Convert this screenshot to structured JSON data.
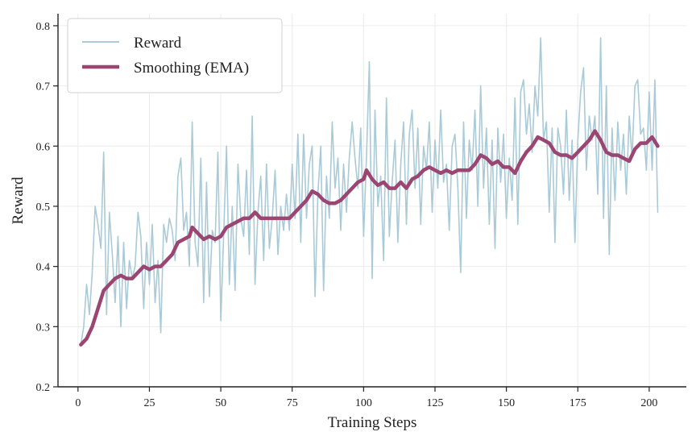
{
  "chart_data": {
    "type": "line",
    "title": "",
    "xlabel": "Training Steps",
    "ylabel": "Reward",
    "xlim": [
      -7,
      213
    ],
    "ylim": [
      0.2,
      0.82
    ],
    "xticks": [
      0,
      25,
      50,
      75,
      100,
      125,
      150,
      175,
      200
    ],
    "yticks": [
      0.2,
      0.3,
      0.4,
      0.5,
      0.6,
      0.7,
      0.8
    ],
    "grid": true,
    "legend_position": "top-left",
    "series": [
      {
        "name": "Reward",
        "color": "#a9cad6",
        "style": "thin",
        "points": [
          [
            1,
            0.27
          ],
          [
            2,
            0.3
          ],
          [
            3,
            0.37
          ],
          [
            4,
            0.32
          ],
          [
            5,
            0.39
          ],
          [
            6,
            0.5
          ],
          [
            7,
            0.47
          ],
          [
            8,
            0.43
          ],
          [
            9,
            0.59
          ],
          [
            10,
            0.32
          ],
          [
            11,
            0.49
          ],
          [
            12,
            0.42
          ],
          [
            13,
            0.34
          ],
          [
            14,
            0.45
          ],
          [
            15,
            0.3
          ],
          [
            16,
            0.44
          ],
          [
            17,
            0.33
          ],
          [
            18,
            0.41
          ],
          [
            19,
            0.38
          ],
          [
            20,
            0.4
          ],
          [
            21,
            0.49
          ],
          [
            22,
            0.45
          ],
          [
            23,
            0.33
          ],
          [
            24,
            0.44
          ],
          [
            25,
            0.37
          ],
          [
            26,
            0.47
          ],
          [
            27,
            0.34
          ],
          [
            28,
            0.41
          ],
          [
            29,
            0.29
          ],
          [
            30,
            0.47
          ],
          [
            31,
            0.44
          ],
          [
            32,
            0.48
          ],
          [
            33,
            0.46
          ],
          [
            34,
            0.41
          ],
          [
            35,
            0.55
          ],
          [
            36,
            0.58
          ],
          [
            37,
            0.46
          ],
          [
            38,
            0.49
          ],
          [
            39,
            0.4
          ],
          [
            40,
            0.64
          ],
          [
            41,
            0.44
          ],
          [
            42,
            0.4
          ],
          [
            43,
            0.58
          ],
          [
            44,
            0.34
          ],
          [
            45,
            0.54
          ],
          [
            46,
            0.35
          ],
          [
            47,
            0.46
          ],
          [
            48,
            0.44
          ],
          [
            49,
            0.59
          ],
          [
            50,
            0.31
          ],
          [
            51,
            0.45
          ],
          [
            52,
            0.6
          ],
          [
            53,
            0.37
          ],
          [
            54,
            0.5
          ],
          [
            55,
            0.36
          ],
          [
            56,
            0.57
          ],
          [
            57,
            0.48
          ],
          [
            58,
            0.45
          ],
          [
            59,
            0.56
          ],
          [
            60,
            0.42
          ],
          [
            61,
            0.65
          ],
          [
            62,
            0.37
          ],
          [
            63,
            0.49
          ],
          [
            64,
            0.55
          ],
          [
            65,
            0.41
          ],
          [
            66,
            0.57
          ],
          [
            67,
            0.43
          ],
          [
            68,
            0.48
          ],
          [
            69,
            0.56
          ],
          [
            70,
            0.42
          ],
          [
            71,
            0.5
          ],
          [
            72,
            0.46
          ],
          [
            73,
            0.52
          ],
          [
            74,
            0.46
          ],
          [
            75,
            0.57
          ],
          [
            76,
            0.48
          ],
          [
            77,
            0.62
          ],
          [
            78,
            0.44
          ],
          [
            79,
            0.62
          ],
          [
            80,
            0.48
          ],
          [
            81,
            0.57
          ],
          [
            82,
            0.6
          ],
          [
            83,
            0.35
          ],
          [
            84,
            0.52
          ],
          [
            85,
            0.6
          ],
          [
            86,
            0.36
          ],
          [
            87,
            0.55
          ],
          [
            88,
            0.48
          ],
          [
            89,
            0.64
          ],
          [
            90,
            0.53
          ],
          [
            91,
            0.58
          ],
          [
            92,
            0.46
          ],
          [
            93,
            0.57
          ],
          [
            94,
            0.49
          ],
          [
            95,
            0.58
          ],
          [
            96,
            0.64
          ],
          [
            97,
            0.58
          ],
          [
            98,
            0.53
          ],
          [
            99,
            0.63
          ],
          [
            100,
            0.45
          ],
          [
            101,
            0.58
          ],
          [
            102,
            0.74
          ],
          [
            103,
            0.38
          ],
          [
            104,
            0.66
          ],
          [
            105,
            0.5
          ],
          [
            106,
            0.55
          ],
          [
            107,
            0.41
          ],
          [
            108,
            0.68
          ],
          [
            109,
            0.45
          ],
          [
            110,
            0.54
          ],
          [
            111,
            0.61
          ],
          [
            112,
            0.44
          ],
          [
            113,
            0.57
          ],
          [
            114,
            0.64
          ],
          [
            115,
            0.47
          ],
          [
            116,
            0.62
          ],
          [
            117,
            0.66
          ],
          [
            118,
            0.53
          ],
          [
            119,
            0.63
          ],
          [
            120,
            0.47
          ],
          [
            121,
            0.6
          ],
          [
            122,
            0.56
          ],
          [
            123,
            0.64
          ],
          [
            124,
            0.49
          ],
          [
            125,
            0.61
          ],
          [
            126,
            0.53
          ],
          [
            127,
            0.66
          ],
          [
            128,
            0.54
          ],
          [
            129,
            0.57
          ],
          [
            130,
            0.46
          ],
          [
            131,
            0.6
          ],
          [
            132,
            0.62
          ],
          [
            133,
            0.53
          ],
          [
            134,
            0.39
          ],
          [
            135,
            0.64
          ],
          [
            136,
            0.48
          ],
          [
            137,
            0.61
          ],
          [
            138,
            0.56
          ],
          [
            139,
            0.66
          ],
          [
            140,
            0.5
          ],
          [
            141,
            0.7
          ],
          [
            142,
            0.53
          ],
          [
            143,
            0.63
          ],
          [
            144,
            0.47
          ],
          [
            145,
            0.61
          ],
          [
            146,
            0.43
          ],
          [
            147,
            0.63
          ],
          [
            148,
            0.54
          ],
          [
            149,
            0.62
          ],
          [
            150,
            0.48
          ],
          [
            151,
            0.58
          ],
          [
            152,
            0.51
          ],
          [
            153,
            0.68
          ],
          [
            154,
            0.47
          ],
          [
            155,
            0.69
          ],
          [
            156,
            0.71
          ],
          [
            157,
            0.62
          ],
          [
            158,
            0.67
          ],
          [
            159,
            0.59
          ],
          [
            160,
            0.7
          ],
          [
            161,
            0.65
          ],
          [
            162,
            0.78
          ],
          [
            163,
            0.61
          ],
          [
            164,
            0.64
          ],
          [
            165,
            0.49
          ],
          [
            166,
            0.63
          ],
          [
            167,
            0.44
          ],
          [
            168,
            0.63
          ],
          [
            169,
            0.6
          ],
          [
            170,
            0.52
          ],
          [
            171,
            0.66
          ],
          [
            172,
            0.51
          ],
          [
            173,
            0.61
          ],
          [
            174,
            0.44
          ],
          [
            175,
            0.61
          ],
          [
            176,
            0.69
          ],
          [
            177,
            0.73
          ],
          [
            178,
            0.56
          ],
          [
            179,
            0.65
          ],
          [
            180,
            0.61
          ],
          [
            181,
            0.65
          ],
          [
            182,
            0.52
          ],
          [
            183,
            0.78
          ],
          [
            184,
            0.48
          ],
          [
            185,
            0.7
          ],
          [
            186,
            0.42
          ],
          [
            187,
            0.63
          ],
          [
            188,
            0.51
          ],
          [
            189,
            0.64
          ],
          [
            190,
            0.56
          ],
          [
            191,
            0.62
          ],
          [
            192,
            0.52
          ],
          [
            193,
            0.65
          ],
          [
            194,
            0.58
          ],
          [
            195,
            0.7
          ],
          [
            196,
            0.71
          ],
          [
            197,
            0.62
          ],
          [
            198,
            0.63
          ],
          [
            199,
            0.56
          ],
          [
            200,
            0.69
          ],
          [
            201,
            0.56
          ],
          [
            202,
            0.71
          ],
          [
            203,
            0.49
          ]
        ]
      },
      {
        "name": "Smoothing (EMA)",
        "color": "#9b4572",
        "style": "thick",
        "points": [
          [
            1,
            0.27
          ],
          [
            3,
            0.28
          ],
          [
            5,
            0.3
          ],
          [
            7,
            0.33
          ],
          [
            9,
            0.36
          ],
          [
            11,
            0.37
          ],
          [
            13,
            0.38
          ],
          [
            15,
            0.385
          ],
          [
            17,
            0.38
          ],
          [
            19,
            0.38
          ],
          [
            21,
            0.39
          ],
          [
            23,
            0.4
          ],
          [
            25,
            0.395
          ],
          [
            27,
            0.4
          ],
          [
            29,
            0.4
          ],
          [
            31,
            0.41
          ],
          [
            33,
            0.42
          ],
          [
            35,
            0.44
          ],
          [
            37,
            0.445
          ],
          [
            39,
            0.45
          ],
          [
            40,
            0.465
          ],
          [
            42,
            0.455
          ],
          [
            44,
            0.445
          ],
          [
            46,
            0.45
          ],
          [
            48,
            0.445
          ],
          [
            50,
            0.45
          ],
          [
            52,
            0.465
          ],
          [
            54,
            0.47
          ],
          [
            56,
            0.475
          ],
          [
            58,
            0.48
          ],
          [
            60,
            0.48
          ],
          [
            62,
            0.49
          ],
          [
            64,
            0.48
          ],
          [
            66,
            0.48
          ],
          [
            68,
            0.48
          ],
          [
            70,
            0.48
          ],
          [
            72,
            0.48
          ],
          [
            74,
            0.48
          ],
          [
            76,
            0.49
          ],
          [
            78,
            0.5
          ],
          [
            80,
            0.51
          ],
          [
            82,
            0.525
          ],
          [
            84,
            0.52
          ],
          [
            86,
            0.51
          ],
          [
            88,
            0.505
          ],
          [
            90,
            0.505
          ],
          [
            92,
            0.51
          ],
          [
            94,
            0.52
          ],
          [
            96,
            0.53
          ],
          [
            98,
            0.54
          ],
          [
            100,
            0.545
          ],
          [
            101,
            0.56
          ],
          [
            103,
            0.545
          ],
          [
            105,
            0.535
          ],
          [
            107,
            0.54
          ],
          [
            109,
            0.53
          ],
          [
            111,
            0.53
          ],
          [
            113,
            0.54
          ],
          [
            115,
            0.53
          ],
          [
            117,
            0.545
          ],
          [
            119,
            0.55
          ],
          [
            121,
            0.56
          ],
          [
            123,
            0.565
          ],
          [
            125,
            0.56
          ],
          [
            127,
            0.555
          ],
          [
            129,
            0.56
          ],
          [
            131,
            0.555
          ],
          [
            133,
            0.56
          ],
          [
            135,
            0.56
          ],
          [
            137,
            0.56
          ],
          [
            139,
            0.57
          ],
          [
            141,
            0.585
          ],
          [
            143,
            0.58
          ],
          [
            145,
            0.57
          ],
          [
            147,
            0.575
          ],
          [
            149,
            0.565
          ],
          [
            151,
            0.565
          ],
          [
            153,
            0.555
          ],
          [
            155,
            0.575
          ],
          [
            157,
            0.59
          ],
          [
            159,
            0.6
          ],
          [
            161,
            0.615
          ],
          [
            163,
            0.61
          ],
          [
            165,
            0.605
          ],
          [
            167,
            0.59
          ],
          [
            169,
            0.585
          ],
          [
            171,
            0.585
          ],
          [
            173,
            0.58
          ],
          [
            175,
            0.59
          ],
          [
            177,
            0.6
          ],
          [
            179,
            0.61
          ],
          [
            181,
            0.625
          ],
          [
            183,
            0.61
          ],
          [
            185,
            0.59
          ],
          [
            187,
            0.585
          ],
          [
            189,
            0.585
          ],
          [
            191,
            0.58
          ],
          [
            193,
            0.575
          ],
          [
            195,
            0.595
          ],
          [
            197,
            0.605
          ],
          [
            199,
            0.605
          ],
          [
            201,
            0.615
          ],
          [
            203,
            0.6
          ]
        ]
      }
    ]
  }
}
